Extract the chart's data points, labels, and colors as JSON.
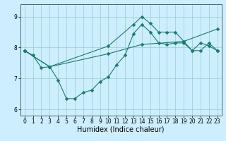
{
  "xlabel": "Humidex (Indice chaleur)",
  "bg_color": "#cceeff",
  "line_color": "#1a7a6e",
  "grid_color": "#99cccc",
  "xlim": [
    -0.5,
    23.5
  ],
  "ylim": [
    5.8,
    9.4
  ],
  "yticks": [
    6,
    7,
    8,
    9
  ],
  "xticks": [
    0,
    1,
    2,
    3,
    4,
    5,
    6,
    7,
    8,
    9,
    10,
    11,
    12,
    13,
    14,
    15,
    16,
    17,
    18,
    19,
    20,
    21,
    22,
    23
  ],
  "line1_x": [
    0,
    1,
    2,
    3,
    4,
    5,
    6,
    7,
    8,
    9,
    10,
    11,
    12,
    13,
    14,
    15,
    16,
    17,
    18,
    19,
    20,
    21,
    22,
    23
  ],
  "line1_y": [
    7.9,
    7.75,
    7.35,
    7.38,
    6.95,
    6.35,
    6.35,
    6.55,
    6.62,
    6.9,
    7.05,
    7.45,
    7.75,
    8.45,
    8.75,
    8.5,
    8.15,
    8.1,
    8.15,
    8.15,
    7.9,
    8.15,
    8.05,
    7.9
  ],
  "line1_markers": [
    0,
    1,
    2,
    3,
    4,
    5,
    6,
    7,
    8,
    9,
    10,
    11,
    12,
    13,
    14,
    15,
    16,
    17,
    18,
    19,
    20,
    21,
    22,
    23
  ],
  "line2_x": [
    0,
    3,
    10,
    14,
    19,
    23
  ],
  "line2_y": [
    7.9,
    7.38,
    7.8,
    8.1,
    8.2,
    8.6
  ],
  "line3_x": [
    0,
    3,
    10,
    13,
    14,
    15,
    16,
    17,
    18,
    19,
    20,
    21,
    22,
    23
  ],
  "line3_y": [
    7.9,
    7.38,
    8.05,
    8.75,
    9.0,
    8.78,
    8.5,
    8.5,
    8.5,
    8.2,
    7.9,
    7.9,
    8.15,
    7.9
  ],
  "markersize": 2.5,
  "linewidth": 0.8,
  "label_fontsize": 7,
  "tick_fontsize": 5.5
}
